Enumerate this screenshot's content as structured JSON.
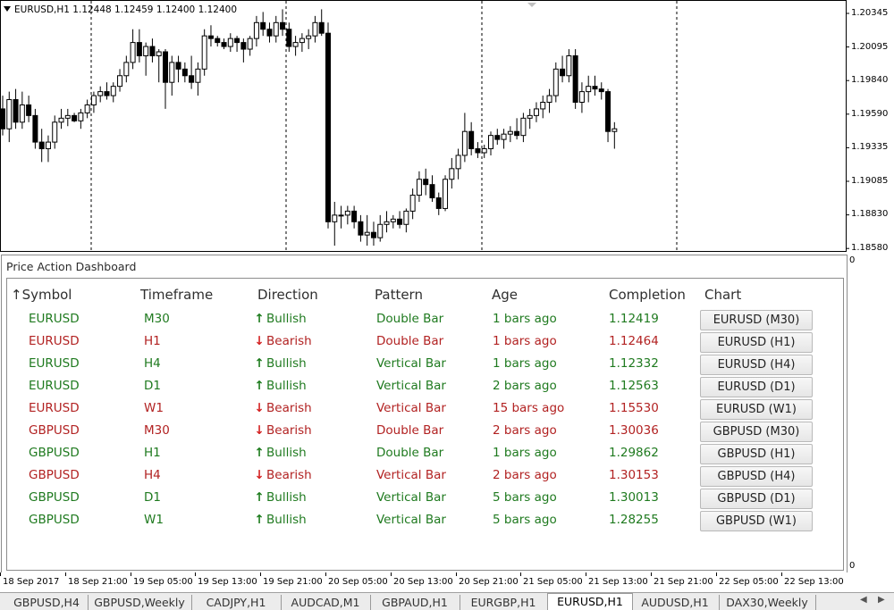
{
  "chart": {
    "header": "EURUSD,H1  1.12448 1.12459 1.12400 1.12400",
    "price_scale": [
      "1.20345",
      "1.20095",
      "1.19840",
      "1.19590",
      "1.19335",
      "1.19085",
      "1.18830",
      "1.18580"
    ],
    "subwindow_scale_top": "0",
    "subwindow_scale_bottom": "0"
  },
  "dashboard": {
    "title": "Price Action Dashboard",
    "headers": {
      "symbol": "↑Symbol",
      "timeframe": "Timeframe",
      "direction": "Direction",
      "pattern": "Pattern",
      "age": "Age",
      "completion": "Completion",
      "chart": "Chart"
    },
    "colors": {
      "bullish": "#1f7a1f",
      "bearish": "#b22222"
    },
    "rows": [
      {
        "symbol": "EURUSD",
        "timeframe": "M30",
        "direction": "Bullish",
        "pattern": "Double Bar",
        "age": "1 bars ago",
        "completion": "1.12419",
        "chart": "EURUSD (M30)"
      },
      {
        "symbol": "EURUSD",
        "timeframe": "H1",
        "direction": "Bearish",
        "pattern": "Double Bar",
        "age": "1 bars ago",
        "completion": "1.12464",
        "chart": "EURUSD (H1)"
      },
      {
        "symbol": "EURUSD",
        "timeframe": "H4",
        "direction": "Bullish",
        "pattern": "Vertical Bar",
        "age": "1 bars ago",
        "completion": "1.12332",
        "chart": "EURUSD (H4)"
      },
      {
        "symbol": "EURUSD",
        "timeframe": "D1",
        "direction": "Bullish",
        "pattern": "Vertical Bar",
        "age": "2 bars ago",
        "completion": "1.12563",
        "chart": "EURUSD (D1)"
      },
      {
        "symbol": "EURUSD",
        "timeframe": "W1",
        "direction": "Bearish",
        "pattern": "Vertical Bar",
        "age": "15 bars ago",
        "completion": "1.15530",
        "chart": "EURUSD (W1)"
      },
      {
        "symbol": "GBPUSD",
        "timeframe": "M30",
        "direction": "Bearish",
        "pattern": "Double Bar",
        "age": "2 bars ago",
        "completion": "1.30036",
        "chart": "GBPUSD (M30)"
      },
      {
        "symbol": "GBPUSD",
        "timeframe": "H1",
        "direction": "Bullish",
        "pattern": "Double Bar",
        "age": "1 bars ago",
        "completion": "1.29862",
        "chart": "GBPUSD (H1)"
      },
      {
        "symbol": "GBPUSD",
        "timeframe": "H4",
        "direction": "Bearish",
        "pattern": "Vertical Bar",
        "age": "2 bars ago",
        "completion": "1.30153",
        "chart": "GBPUSD (H4)"
      },
      {
        "symbol": "GBPUSD",
        "timeframe": "D1",
        "direction": "Bullish",
        "pattern": "Vertical Bar",
        "age": "5 bars ago",
        "completion": "1.30013",
        "chart": "GBPUSD (D1)"
      },
      {
        "symbol": "GBPUSD",
        "timeframe": "W1",
        "direction": "Bullish",
        "pattern": "Vertical Bar",
        "age": "5 bars ago",
        "completion": "1.28255",
        "chart": "GBPUSD (W1)"
      }
    ]
  },
  "time_axis": [
    "18 Sep 2017",
    "18 Sep 21:00",
    "19 Sep 05:00",
    "19 Sep 13:00",
    "19 Sep 21:00",
    "20 Sep 05:00",
    "20 Sep 13:00",
    "20 Sep 21:00",
    "21 Sep 05:00",
    "21 Sep 13:00",
    "21 Sep 21:00",
    "22 Sep 05:00",
    "22 Sep 13:00"
  ],
  "tabs": {
    "items": [
      "GBPUSD,H4",
      "GBPUSD,Weekly",
      "CADJPY,H1",
      "AUDCAD,M1",
      "GBPAUD,H1",
      "EURGBP,H1",
      "EURUSD,H1",
      "AUDUSD,H1",
      "DAX30,Weekly"
    ],
    "active": "EURUSD,H1",
    "nav_left": "◀",
    "nav_right": "▶"
  },
  "chart_data": {
    "type": "candlestick",
    "symbol": "EURUSD",
    "timeframe": "H1",
    "price_range": [
      1.1858,
      1.2045
    ],
    "candles": [
      [
        1.1965,
        1.1975,
        1.1945,
        1.195
      ],
      [
        1.195,
        1.1978,
        1.194,
        1.1972
      ],
      [
        1.1972,
        1.198,
        1.195,
        1.1955
      ],
      [
        1.1955,
        1.1978,
        1.195,
        1.1968
      ],
      [
        1.1968,
        1.1975,
        1.1955,
        1.196
      ],
      [
        1.196,
        1.1965,
        1.1935,
        1.194
      ],
      [
        1.194,
        1.195,
        1.1925,
        1.1935
      ],
      [
        1.1935,
        1.1945,
        1.1925,
        1.194
      ],
      [
        1.194,
        1.196,
        1.1935,
        1.1955
      ],
      [
        1.1955,
        1.1965,
        1.195,
        1.1958
      ],
      [
        1.1958,
        1.1965,
        1.1952,
        1.196
      ],
      [
        1.196,
        1.1962,
        1.1955,
        1.1956
      ],
      [
        1.1956,
        1.1965,
        1.195,
        1.1962
      ],
      [
        1.1962,
        1.1972,
        1.1958,
        1.1968
      ],
      [
        1.1968,
        1.1978,
        1.1962,
        1.1975
      ],
      [
        1.1975,
        1.1982,
        1.197,
        1.1978
      ],
      [
        1.1978,
        1.1985,
        1.1972,
        1.1975
      ],
      [
        1.1975,
        1.1985,
        1.197,
        1.1982
      ],
      [
        1.1982,
        1.1995,
        1.1978,
        1.199
      ],
      [
        1.199,
        1.2005,
        1.1985,
        1.2
      ],
      [
        1.2,
        1.2025,
        1.1995,
        1.2015
      ],
      [
        1.2015,
        1.2025,
        1.2,
        1.2005
      ],
      [
        1.2005,
        1.2015,
        1.199,
        1.2012
      ],
      [
        1.2012,
        1.2018,
        1.2,
        1.2005
      ],
      [
        1.2005,
        1.201,
        1.1985,
        1.2008
      ],
      [
        1.2008,
        1.201,
        1.1965,
        1.1985
      ],
      [
        1.1985,
        1.2005,
        1.1975,
        1.2
      ],
      [
        1.2,
        1.2005,
        1.1985,
        1.1995
      ],
      [
        1.1995,
        1.2,
        1.1985,
        1.199
      ],
      [
        1.199,
        1.2005,
        1.198,
        1.1985
      ],
      [
        1.1985,
        1.2,
        1.1975,
        1.1995
      ],
      [
        1.1995,
        1.2025,
        1.199,
        1.202
      ],
      [
        1.202,
        1.2028,
        1.2012,
        1.2018
      ],
      [
        1.2018,
        1.202,
        1.2012,
        1.2015
      ],
      [
        1.2015,
        1.2018,
        1.201,
        1.2012
      ],
      [
        1.2012,
        1.2022,
        1.2008,
        1.2018
      ],
      [
        1.2018,
        1.202,
        1.2008,
        1.2015
      ],
      [
        1.2015,
        1.2018,
        1.2,
        1.201
      ],
      [
        1.201,
        1.202,
        1.2005,
        1.2018
      ],
      [
        1.2018,
        1.2035,
        1.2012,
        1.203
      ],
      [
        1.203,
        1.2038,
        1.202,
        1.2025
      ],
      [
        1.2025,
        1.203,
        1.2015,
        1.202
      ],
      [
        1.202,
        1.2035,
        1.2015,
        1.203
      ],
      [
        1.203,
        1.204,
        1.202,
        1.2025
      ],
      [
        1.2025,
        1.203,
        1.2008,
        1.2012
      ],
      [
        1.2012,
        1.202,
        1.2005,
        1.2015
      ],
      [
        1.2015,
        1.2022,
        1.2008,
        1.2018
      ],
      [
        1.2018,
        1.2025,
        1.201,
        1.202
      ],
      [
        1.202,
        1.2035,
        1.2015,
        1.203
      ],
      [
        1.203,
        1.204,
        1.202,
        1.2022
      ],
      [
        1.2022,
        1.203,
        1.1875,
        1.188
      ],
      [
        1.188,
        1.1895,
        1.1862,
        1.1885
      ],
      [
        1.1885,
        1.1892,
        1.1875,
        1.1885
      ],
      [
        1.1885,
        1.1892,
        1.1878,
        1.1888
      ],
      [
        1.1888,
        1.1892,
        1.1875,
        1.188
      ],
      [
        1.188,
        1.1885,
        1.1865,
        1.187
      ],
      [
        1.187,
        1.1885,
        1.1862,
        1.1872
      ],
      [
        1.1872,
        1.188,
        1.1862,
        1.1868
      ],
      [
        1.1868,
        1.1885,
        1.1865,
        1.1878
      ],
      [
        1.1878,
        1.1888,
        1.1872,
        1.188
      ],
      [
        1.188,
        1.1885,
        1.1875,
        1.1882
      ],
      [
        1.1882,
        1.1888,
        1.1875,
        1.1878
      ],
      [
        1.1878,
        1.189,
        1.1872,
        1.1888
      ],
      [
        1.1888,
        1.1905,
        1.1882,
        1.19
      ],
      [
        1.19,
        1.1918,
        1.1895,
        1.1912
      ],
      [
        1.1912,
        1.192,
        1.19,
        1.1908
      ],
      [
        1.1908,
        1.1915,
        1.1895,
        1.1898
      ],
      [
        1.1898,
        1.1902,
        1.1885,
        1.189
      ],
      [
        1.189,
        1.1915,
        1.1888,
        1.1912
      ],
      [
        1.1912,
        1.1928,
        1.1905,
        1.192
      ],
      [
        1.192,
        1.1935,
        1.1912,
        1.193
      ],
      [
        1.193,
        1.1962,
        1.1925,
        1.1948
      ],
      [
        1.1948,
        1.1955,
        1.193,
        1.1935
      ],
      [
        1.1935,
        1.194,
        1.1928,
        1.1932
      ],
      [
        1.1932,
        1.1938,
        1.1928,
        1.1935
      ],
      [
        1.1935,
        1.1948,
        1.193,
        1.1945
      ],
      [
        1.1945,
        1.195,
        1.1938,
        1.1942
      ],
      [
        1.1942,
        1.195,
        1.1935,
        1.1946
      ],
      [
        1.1946,
        1.1952,
        1.194,
        1.1948
      ],
      [
        1.1948,
        1.1958,
        1.1942,
        1.1945
      ],
      [
        1.1945,
        1.1962,
        1.194,
        1.1958
      ],
      [
        1.1958,
        1.1965,
        1.195,
        1.196
      ],
      [
        1.196,
        1.197,
        1.1955,
        1.1965
      ],
      [
        1.1965,
        1.1975,
        1.1958,
        1.197
      ],
      [
        1.197,
        1.198,
        1.1962,
        1.1975
      ],
      [
        1.1975,
        1.2,
        1.197,
        1.1995
      ],
      [
        1.1995,
        1.2005,
        1.1985,
        1.199
      ],
      [
        1.199,
        1.201,
        1.1985,
        1.2005
      ],
      [
        1.2005,
        1.201,
        1.1965,
        1.197
      ],
      [
        1.197,
        1.1985,
        1.1962,
        1.1978
      ],
      [
        1.1978,
        1.199,
        1.197,
        1.1982
      ],
      [
        1.1982,
        1.199,
        1.1975,
        1.198
      ],
      [
        1.198,
        1.1985,
        1.1972,
        1.1978
      ],
      [
        1.1978,
        1.198,
        1.194,
        1.1948
      ],
      [
        1.1948,
        1.1955,
        1.1935,
        1.195
      ]
    ]
  }
}
